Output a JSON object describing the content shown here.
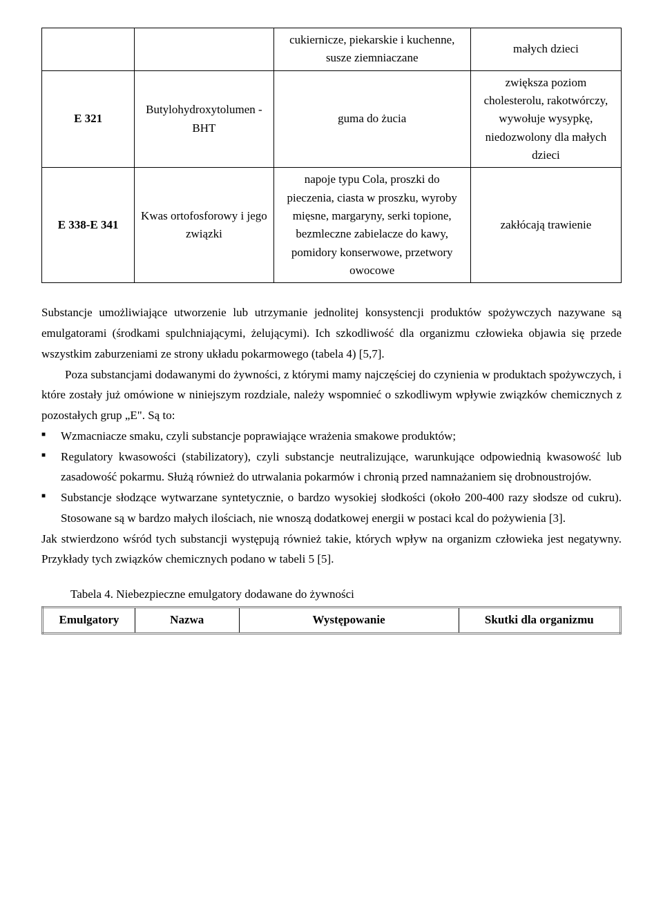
{
  "table1": {
    "rows": [
      {
        "code": "",
        "name": "",
        "use": "cukiernicze, piekarskie i kuchenne, susze ziemniaczane",
        "effect": "małych dzieci"
      },
      {
        "code": "E 321",
        "name": "Butylohydroxytolumen - BHT",
        "use": "guma do żucia",
        "effect": "zwiększa poziom cholesterolu, rakotwórczy, wywołuje wysypkę, niedozwolony dla małych dzieci"
      },
      {
        "code": "E 338-E 341",
        "name": "Kwas ortofosforowy i jego związki",
        "use": "napoje typu Cola, proszki do pieczenia, ciasta w proszku, wyroby mięsne, margaryny, serki topione, bezmleczne zabielacze do kawy, pomidory konserwowe, przetwory owocowe",
        "effect": "zakłócają trawienie"
      }
    ]
  },
  "para1": "Substancje umożliwiające utworzenie lub utrzymanie jednolitej konsystencji produktów spożywczych nazywane są emulgatorami (środkami spulchniającymi, żelującymi). Ich szkodliwość dla organizmu człowieka objawia się przede wszystkim zaburzeniami ze strony układu pokarmowego (tabela 4) [5,7].",
  "para2": "Poza substancjami dodawanymi do żywności, z którymi mamy najczęściej do czynienia w produktach spożywczych, i które zostały już omówione w niniejszym rozdziale, należy wspomnieć o szkodliwym wpływie związków chemicznych z pozostałych grup „E\". Są to:",
  "bullets": [
    "Wzmacniacze smaku, czyli substancje poprawiające wrażenia smakowe produktów;",
    "Regulatory kwasowości (stabilizatory), czyli substancje neutralizujące, warunkujące odpowiednią kwasowość lub zasadowość pokarmu. Służą również do utrwalania pokarmów i chronią przed namnażaniem się drobnoustrojów.",
    "Substancje słodzące wytwarzane syntetycznie, o bardzo wysokiej słodkości (około 200-400 razy słodsze od cukru). Stosowane są w bardzo małych ilościach, nie wnoszą dodatkowej energii w postaci kcal do pożywienia [3]."
  ],
  "para3": "Jak stwierdzono wśród tych substancji występują również takie, których wpływ na organizm człowieka jest negatywny. Przykłady tych związków chemicznych podano w tabeli 5 [5].",
  "table2_caption": "Tabela 4. Niebezpieczne emulgatory dodawane do żywności",
  "table2_headers": [
    "Emulgatory",
    "Nazwa",
    "Występowanie",
    "Skutki dla organizmu"
  ]
}
